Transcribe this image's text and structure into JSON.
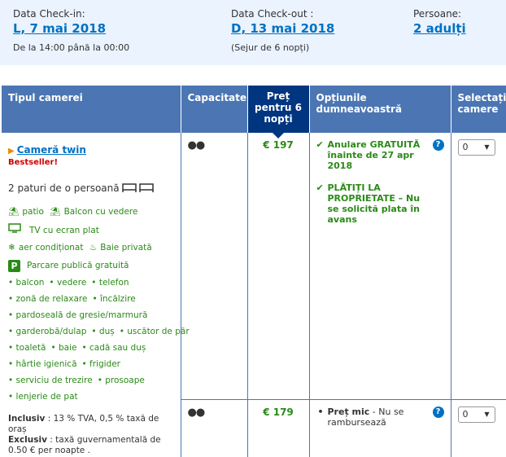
{
  "summary": {
    "checkin": {
      "label": "Data Check-in:",
      "value": "L, 7 mai 2018",
      "sub": "De la 14:00 până la 00:00"
    },
    "checkout": {
      "label": "Data Check-out :",
      "value": "D, 13 mai 2018",
      "sub": "(Sejur de 6 nopți)"
    },
    "persons": {
      "label": "Persoane:",
      "value": "2 adulți"
    }
  },
  "table": {
    "headers": {
      "room_type": "Tipul camerei",
      "capacity": "Capacitate",
      "price": "Preț pentru 6 nopți",
      "options": "Opțiunile dumneavoastră",
      "select": "Selectați camere"
    }
  },
  "room": {
    "name": "Cameră twin",
    "badge": "Bestseller!",
    "beds": "2 paturi de o persoană",
    "facilities": [
      {
        "icon": "patio-icon",
        "label": "patio"
      },
      {
        "icon": "balcony-icon",
        "label": "Balcon cu vedere"
      },
      {
        "icon": "tv-icon",
        "label": "TV cu ecran plat"
      },
      {
        "icon": "snowflake-icon",
        "label": "aer condiționat"
      },
      {
        "icon": "bath-icon",
        "label": "Baie privată"
      },
      {
        "icon": "parking-icon",
        "label": "Parcare publică gratuită"
      }
    ],
    "amenity_rows": [
      [
        "balcon",
        "vedere",
        "telefon"
      ],
      [
        "zonă de relaxare",
        "încălzire"
      ],
      [
        "pardoseală de gresie/marmură"
      ],
      [
        "garderobă/dulap",
        "duș",
        "uscător de păr"
      ],
      [
        "toaletă",
        "baie",
        "cadă sau duș"
      ],
      [
        "hârtie igienică",
        "frigider"
      ],
      [
        "serviciu de trezire",
        "prosoape"
      ],
      [
        "lenjerie de pat"
      ]
    ],
    "taxes": {
      "inclusive_label": "Inclusiv",
      "inclusive_text": " : 13 % TVA, 0,5 % taxă de oraș",
      "exclusive_label": "Exclusiv",
      "exclusive_text": " : taxă guvernamentală de 0.50 € per noapte ."
    }
  },
  "offers": [
    {
      "price": "€ 197",
      "options": [
        "Anulare GRATUITĂ înainte de 27 apr 2018",
        "PLĂTIȚI LA PROPRIETATE – Nu se solicită plata în avans"
      ],
      "select_value": "0"
    },
    {
      "price": "€ 179",
      "option_bold": "Preț mic",
      "option_rest": " - Nu se rambursează",
      "select_value": "0"
    }
  ],
  "colors": {
    "brand": "#0071c2",
    "header": "#4b76b3",
    "price_header": "#003580",
    "green": "#2a8a17",
    "summary_bg": "#ebf3ff"
  }
}
